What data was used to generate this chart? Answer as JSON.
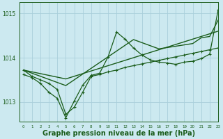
{
  "bg_color": "#cce9f0",
  "grid_color": "#aacfdb",
  "line_color": "#1a5c1a",
  "xlabel": "Graphe pression niveau de la mer (hPa)",
  "xlabel_fontsize": 7,
  "xlim": [
    -0.5,
    23
  ],
  "ylim": [
    1012.55,
    1015.25
  ],
  "yticks": [
    1013,
    1014,
    1015
  ],
  "xticks": [
    0,
    1,
    2,
    3,
    4,
    5,
    6,
    7,
    8,
    9,
    10,
    11,
    12,
    13,
    14,
    15,
    16,
    17,
    18,
    19,
    20,
    21,
    22,
    23
  ],
  "series": [
    {
      "y": [
        1013.72,
        1013.68,
        1013.64,
        1013.6,
        1013.56,
        1013.52,
        1013.58,
        1013.64,
        1013.7,
        1013.76,
        1013.82,
        1013.88,
        1013.94,
        1014.0,
        1014.06,
        1014.12,
        1014.18,
        1014.24,
        1014.3,
        1014.36,
        1014.42,
        1014.48,
        1014.54,
        1014.6
      ],
      "lw": 1.0,
      "marker": null
    },
    {
      "y": [
        1013.72,
        1013.65,
        1013.58,
        1013.51,
        1013.44,
        1013.37,
        1013.5,
        1013.63,
        1013.76,
        1013.89,
        1014.02,
        1014.15,
        1014.28,
        1014.41,
        1014.34,
        1014.27,
        1014.2,
        1014.23,
        1014.26,
        1014.29,
        1014.32,
        1014.45,
        1014.48,
        1014.85
      ],
      "lw": 1.0,
      "marker": null
    },
    {
      "y": [
        1013.72,
        1013.58,
        1013.5,
        1013.42,
        1013.28,
        1012.72,
        1012.88,
        1013.22,
        1013.58,
        1013.62,
        1013.68,
        1013.72,
        1013.78,
        1013.82,
        1013.86,
        1013.9,
        1013.94,
        1013.98,
        1014.02,
        1014.06,
        1014.1,
        1014.14,
        1014.18,
        1014.22
      ],
      "lw": 0.9,
      "marker": "+"
    },
    {
      "y": [
        1013.62,
        1013.55,
        1013.42,
        1013.22,
        1013.08,
        1012.64,
        1013.02,
        1013.38,
        1013.6,
        1013.65,
        1014.02,
        1014.58,
        1014.42,
        1014.22,
        1014.06,
        1013.95,
        1013.9,
        1013.88,
        1013.85,
        1013.9,
        1013.92,
        1013.98,
        1014.08,
        1015.08
      ],
      "lw": 0.9,
      "marker": "+"
    }
  ]
}
